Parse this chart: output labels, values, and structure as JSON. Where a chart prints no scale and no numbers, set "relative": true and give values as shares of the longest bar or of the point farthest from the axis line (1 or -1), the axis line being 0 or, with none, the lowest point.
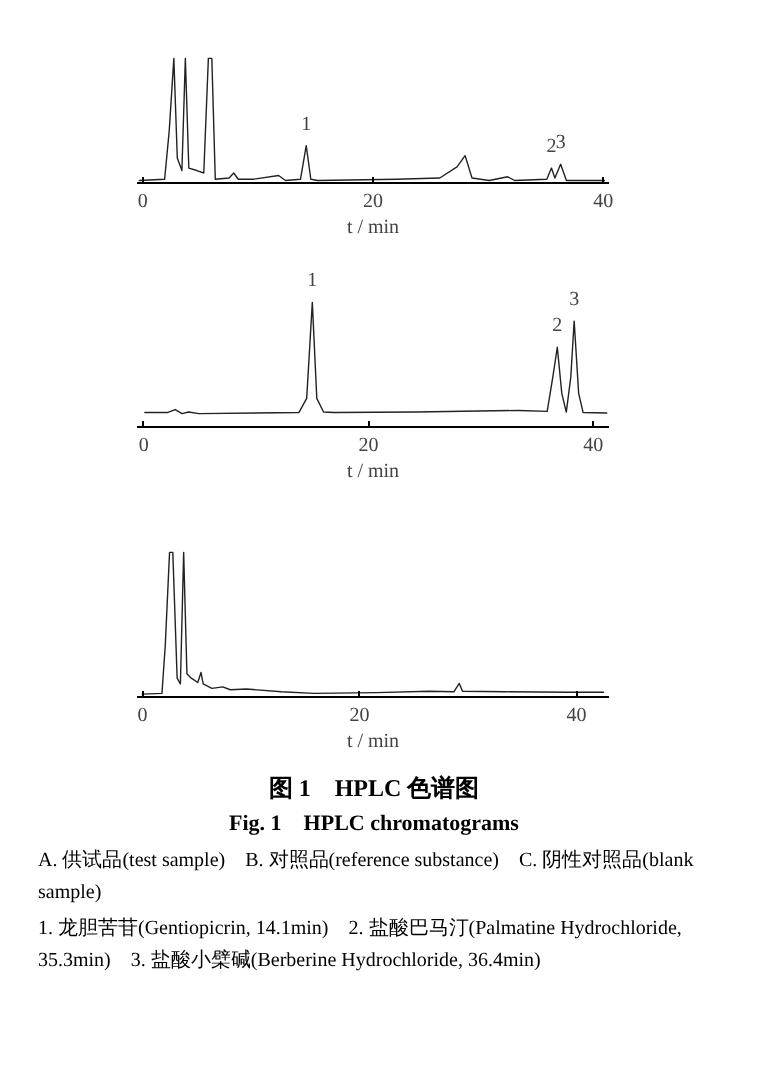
{
  "chart_data": [
    {
      "type": "line",
      "relative": true,
      "xlabel": "t / min",
      "xlim": [
        -0.5,
        40.5
      ],
      "xticks": [
        0,
        20,
        40
      ],
      "tick_labels": "x",
      "grid": false,
      "marker": "none",
      "line_style": "solid",
      "series": [
        {
          "color": "#222222",
          "x": [
            -0.3,
            1.9,
            2.3,
            2.7,
            3.0,
            3.4,
            3.7,
            4.0,
            4.7,
            5.3,
            5.7,
            6.0,
            6.3,
            7.5,
            7.9,
            8.3,
            9.6,
            11.8,
            12.4,
            13.7,
            14.2,
            14.6,
            15.2,
            22.0,
            25.8,
            27.3,
            28.0,
            28.6,
            30.1,
            31.7,
            32.3,
            35.1,
            35.5,
            35.8,
            36.3,
            36.8,
            40.1
          ],
          "values": [
            0.02,
            0.03,
            0.42,
            1.0,
            0.2,
            0.1,
            1.0,
            0.12,
            0.1,
            0.08,
            1.0,
            1.0,
            0.03,
            0.04,
            0.08,
            0.03,
            0.03,
            0.06,
            0.02,
            0.03,
            0.3,
            0.03,
            0.02,
            0.03,
            0.04,
            0.13,
            0.22,
            0.04,
            0.02,
            0.05,
            0.02,
            0.03,
            0.12,
            0.04,
            0.15,
            0.02,
            0.02
          ]
        }
      ],
      "annotations": [
        {
          "text": "1",
          "x": 14.2,
          "y": 0.3
        },
        {
          "text": "2",
          "x": 35.5,
          "y": 0.12
        },
        {
          "text": "3",
          "x": 36.3,
          "y": 0.15
        }
      ]
    },
    {
      "type": "line",
      "relative": true,
      "xlabel": "t / min",
      "xlim": [
        -0.6,
        41.4
      ],
      "xticks": [
        0,
        20,
        40
      ],
      "tick_labels": "x",
      "grid": false,
      "marker": "none",
      "line_style": "solid",
      "series": [
        {
          "color": "#222222",
          "x": [
            0.1,
            2.1,
            2.8,
            3.4,
            4.0,
            4.9,
            13.8,
            14.5,
            15.0,
            15.4,
            16.0,
            16.9,
            24.2,
            33.4,
            35.9,
            36.4,
            36.8,
            37.2,
            37.6,
            38.0,
            38.3,
            38.7,
            39.1,
            41.2
          ],
          "values": [
            0.116,
            0.116,
            0.14,
            0.107,
            0.12,
            0.107,
            0.116,
            0.23,
            1.0,
            0.23,
            0.12,
            0.116,
            0.12,
            0.133,
            0.125,
            0.4,
            0.64,
            0.27,
            0.12,
            0.4,
            0.85,
            0.27,
            0.116,
            0.112
          ]
        }
      ],
      "annotations": [
        {
          "text": "1",
          "x": 15.0,
          "y": 1.0
        },
        {
          "text": "2",
          "x": 36.8,
          "y": 0.64
        },
        {
          "text": "3",
          "x": 38.3,
          "y": 0.85
        }
      ]
    },
    {
      "type": "line",
      "relative": true,
      "xlabel": "t / min",
      "xlim": [
        -0.5,
        43
      ],
      "xticks": [
        0,
        20,
        40
      ],
      "tick_labels": "x",
      "grid": false,
      "marker": "none",
      "line_style": "solid",
      "title": "图 1　HPLC 色谱图",
      "subtitle": "Fig. 1　HPLC chromatograms",
      "series": [
        {
          "color": "#222222",
          "x": [
            0,
            1.8,
            2.1,
            2.5,
            2.8,
            3.2,
            3.5,
            3.8,
            4.1,
            4.5,
            5.1,
            5.4,
            5.6,
            6.4,
            7.4,
            8.1,
            9.6,
            12.8,
            15.8,
            21.6,
            26.4,
            28.7,
            29.2,
            29.5,
            33.4,
            39.3,
            42.5
          ],
          "values": [
            0.02,
            0.025,
            0.35,
            1.0,
            1.0,
            0.13,
            0.09,
            1.0,
            0.16,
            0.13,
            0.1,
            0.17,
            0.09,
            0.06,
            0.07,
            0.05,
            0.055,
            0.036,
            0.025,
            0.03,
            0.04,
            0.036,
            0.094,
            0.04,
            0.036,
            0.033,
            0.033
          ]
        }
      ],
      "annotations": [
        "A. 供试品(test sample)　B. 对照品(reference substance)　C. 阴性对照品(blank sample)",
        "1. 龙胆苦苷(Gentiopicrin, 14.1min)　2. 盐酸巴马汀(Palmatine Hydrochloride, 35.3min)　3. 盐酸小檗碱(Berberine Hydrochloride, 36.4min)"
      ]
    }
  ]
}
